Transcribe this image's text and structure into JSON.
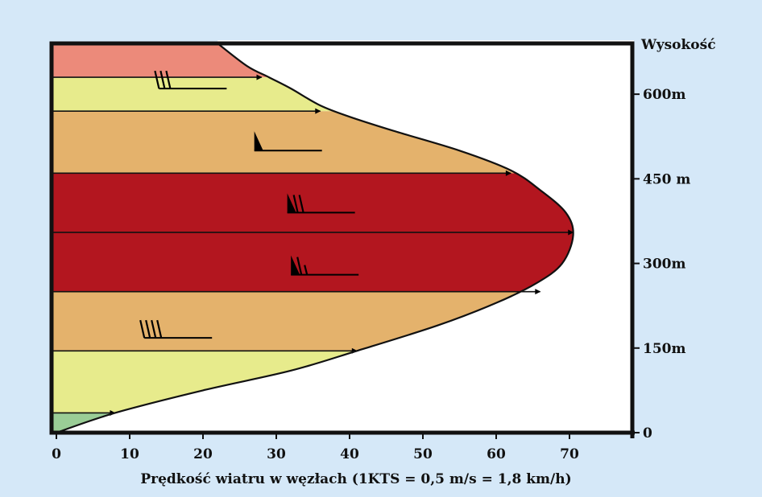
{
  "chart_data": {
    "type": "area",
    "title": "",
    "xlabel": "Prędkość wiatru w węzłach (1KTS = 0,5 m/s = 1,8 km/h)",
    "ylabel": "Wysokość",
    "xlim": [
      0,
      80
    ],
    "ylim": [
      0,
      690
    ],
    "x_ticks": [
      0,
      10,
      20,
      30,
      40,
      50,
      60,
      70
    ],
    "x_tick_labels": [
      "0",
      "10",
      "20",
      "30",
      "40",
      "50",
      "60",
      "70"
    ],
    "y_ticks": [
      0,
      150,
      300,
      450,
      600
    ],
    "y_tick_labels": [
      "0",
      "150m",
      "300m",
      "450 m",
      "600m"
    ],
    "profile": {
      "name": "",
      "x": [
        0,
        8,
        20,
        32,
        41,
        52,
        60,
        65.5,
        69,
        70.5,
        69.5,
        66,
        62,
        55,
        46,
        40,
        36,
        32,
        29,
        26,
        22
      ],
      "y": [
        0,
        35,
        75,
        110,
        145,
        190,
        230,
        265,
        300,
        350,
        390,
        430,
        465,
        500,
        535,
        560,
        580,
        610,
        630,
        650,
        690
      ]
    },
    "bands": [
      {
        "name": "",
        "y0": 0,
        "y1": 35,
        "color": "#9acd96"
      },
      {
        "name": "",
        "y0": 35,
        "y1": 145,
        "color": "#e7eb8c"
      },
      {
        "name": "",
        "y0": 145,
        "y1": 250,
        "color": "#e4b26c"
      },
      {
        "name": "",
        "y0": 250,
        "y1": 460,
        "color": "#b3161f"
      },
      {
        "name": "",
        "y0": 460,
        "y1": 570,
        "color": "#e4b26c"
      },
      {
        "name": "",
        "y0": 570,
        "y1": 630,
        "color": "#e7eb8c"
      },
      {
        "name": "",
        "y0": 630,
        "y1": 690,
        "color": "#ec8a7a"
      }
    ],
    "arrows": [
      {
        "y": 35,
        "speed": 8
      },
      {
        "y": 145,
        "speed": 41
      },
      {
        "y": 250,
        "speed": 66
      },
      {
        "y": 355,
        "speed": 70.5
      },
      {
        "y": 460,
        "speed": 62
      },
      {
        "y": 570,
        "speed": 36
      },
      {
        "y": 630,
        "speed": 28
      }
    ],
    "wind_barbs": [
      {
        "x": 12,
        "y": 168,
        "speed": 40
      },
      {
        "x": 32,
        "y": 280,
        "speed": 65
      },
      {
        "x": 31.5,
        "y": 390,
        "speed": 70
      },
      {
        "x": 27,
        "y": 500,
        "speed": 50
      },
      {
        "x": 14,
        "y": 610,
        "speed": 30
      }
    ],
    "colors": {
      "background": "#d5e8f8",
      "plot_background": "#ffffff",
      "frame": "#111111"
    }
  }
}
